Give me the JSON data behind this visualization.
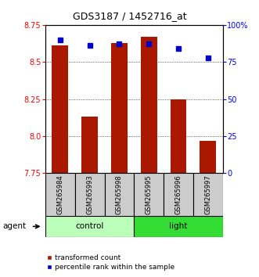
{
  "title": "GDS3187 / 1452716_at",
  "samples": [
    "GSM265984",
    "GSM265993",
    "GSM265998",
    "GSM265995",
    "GSM265996",
    "GSM265997"
  ],
  "red_values": [
    8.61,
    8.13,
    8.63,
    8.67,
    8.25,
    7.97
  ],
  "blue_values": [
    90,
    86,
    87,
    87,
    84,
    78
  ],
  "ylim_left": [
    7.75,
    8.75
  ],
  "ylim_right": [
    0,
    100
  ],
  "yticks_left": [
    7.75,
    8.0,
    8.25,
    8.5,
    8.75
  ],
  "yticks_right": [
    0,
    25,
    50,
    75,
    100
  ],
  "ytick_labels_right": [
    "0",
    "25",
    "50",
    "75",
    "100%"
  ],
  "bar_color": "#AA1800",
  "dot_color": "#0000CC",
  "control_color": "#BBFFBB",
  "light_color": "#33DD33",
  "label_area_color": "#CCCCCC",
  "legend_red": "transformed count",
  "legend_blue": "percentile rank within the sample",
  "agent_label": "agent"
}
